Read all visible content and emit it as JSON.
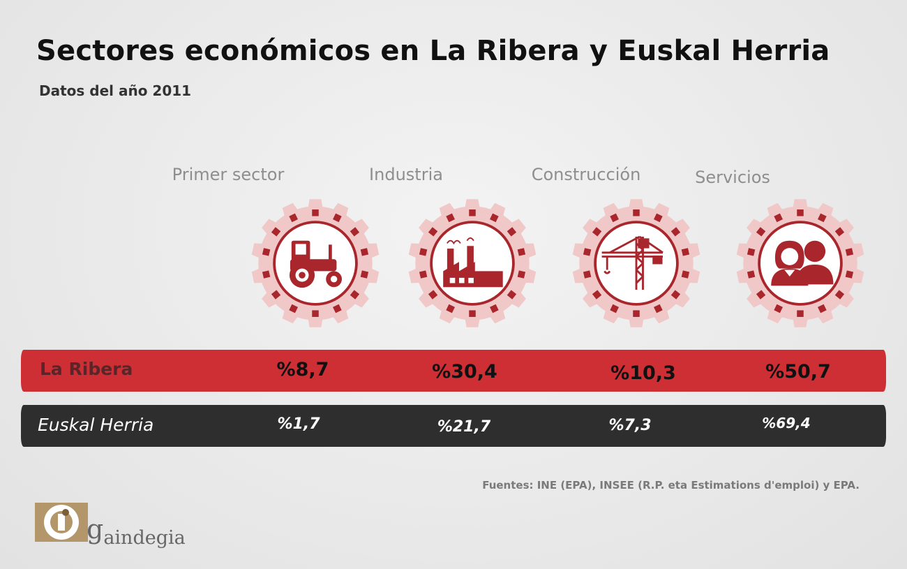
{
  "title": "Sectores económicos en La Ribera y Euskal Herria",
  "subtitle": "Datos del año 2011",
  "colors": {
    "accent": "#cd2f35",
    "dark_bar": "#2e2e2e",
    "gear": "#f1c8c8",
    "icon": "#a8262c"
  },
  "sectors": [
    {
      "label": "Primer sector",
      "icon": "tractor-icon"
    },
    {
      "label": "Industria",
      "icon": "factory-icon"
    },
    {
      "label": "Construcción",
      "icon": "crane-icon"
    },
    {
      "label": "Servicios",
      "icon": "people-icon"
    }
  ],
  "chart_data": {
    "type": "table",
    "categories": [
      "Primer sector",
      "Industria",
      "Construcción",
      "Servicios"
    ],
    "series": [
      {
        "name": "La Ribera",
        "values": [
          8.7,
          30.4,
          10.3,
          50.7
        ],
        "labels": [
          "%8,7",
          "%30,4",
          "%10,3",
          "%50,7"
        ]
      },
      {
        "name": "Euskal Herria",
        "values": [
          1.7,
          21.7,
          7.3,
          69.4
        ],
        "labels": [
          "%1,7",
          "%21,7",
          "%7,3",
          "%69,4"
        ]
      }
    ]
  },
  "source": "Fuentes: INE (EPA), INSEE (R.P. eta Estimations d'emploi) y EPA.",
  "logo_text": "aindegia"
}
